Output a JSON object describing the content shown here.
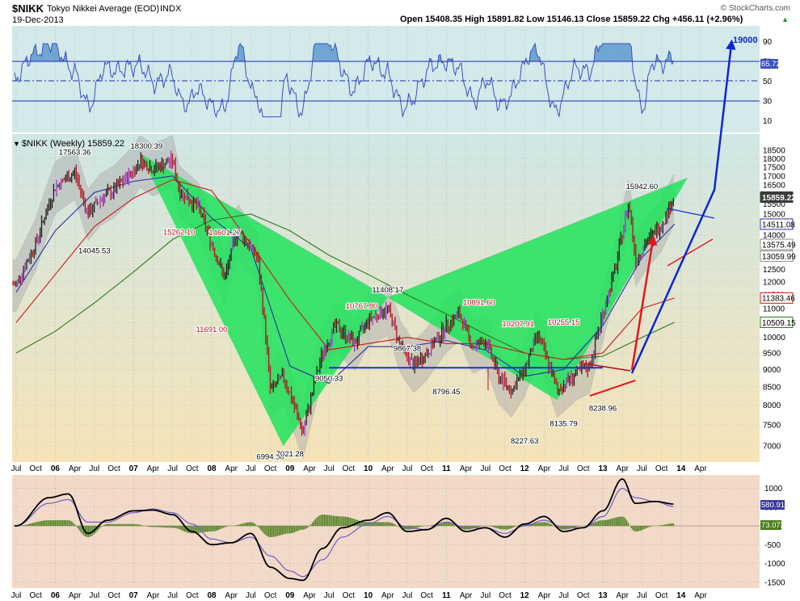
{
  "header": {
    "symbol": "$NIKK",
    "name": "Tokyo Nikkei Average (EOD)",
    "exchange": "INDX",
    "date": "19-Dec-2013",
    "watermark": "© StockCharts.com",
    "ohlc_text": "Open 15408.35  High 15891.82  Low 15146.13  Close 15859.22  Chg +456.11 (+2.96%)",
    "chg_arrow": "▲"
  },
  "colors": {
    "upper_bg": "#d3e9ea",
    "main_bg_top": "#cfe7e5",
    "main_bg_bottom": "#f6e3b7",
    "macd_bg": "#f3d9c8",
    "pattern_fill": "#1fe35a",
    "rsi_line": "#3f4fc0",
    "rsi_fill": "#4d8fc9",
    "bb_fill": "#a9a9a9",
    "ma_short": "#2a2fa5",
    "ma_mid": "#d21616",
    "ma_long": "#2b7a1e",
    "price_up": "#1e1e1e",
    "price_down": "#b3121d",
    "price_purple": "#9b34d6",
    "support_line": "#1732d6",
    "arrow_blue": "#0b26d8",
    "arrow_red": "#e8151b",
    "macd_line": "#000000",
    "macd_signal": "#6b5fc7",
    "macd_hist": "#4a7f1c"
  },
  "rsi": {
    "ticks": [
      "90",
      "70",
      "50",
      "30",
      "10"
    ],
    "current_label": "65.72",
    "target_label": "19000"
  },
  "chart_data": {
    "type": "line",
    "title": "$NIKK (Weekly) 15859.22",
    "title_prefix": "▼",
    "x_axis_labels": [
      "Jul",
      "Oct",
      "06",
      "Apr",
      "Jul",
      "Oct",
      "07",
      "Apr",
      "Jul",
      "Oct",
      "08",
      "Apr",
      "Jul",
      "Oct",
      "09",
      "Apr",
      "Jul",
      "Oct",
      "10",
      "Apr",
      "Jul",
      "Oct",
      "11",
      "Apr",
      "Jul",
      "Oct",
      "12",
      "Apr",
      "Jul",
      "Oct",
      "13",
      "Apr",
      "Jul",
      "Oct",
      "14",
      "Apr"
    ],
    "y_ticks": [
      "18500",
      "18000",
      "17500",
      "17000",
      "16500",
      "16000",
      "15500",
      "15000",
      "14500",
      "14000",
      "13500",
      "13000",
      "12500",
      "12000",
      "11500",
      "11000",
      "10500",
      "10000",
      "9500",
      "9000",
      "8500",
      "8000",
      "7500",
      "7000"
    ],
    "y_scale": "log",
    "ylim": [
      6500,
      19000
    ],
    "series": [
      {
        "kind": "weekly price",
        "dates": [
          "2005-07",
          "2005-10",
          "2006-01",
          "2006-04",
          "2006-06",
          "2006-08",
          "2006-10",
          "2007-01",
          "2007-02",
          "2007-04",
          "2007-07",
          "2007-08",
          "2007-11",
          "2008-01",
          "2008-03",
          "2008-05",
          "2008-06",
          "2008-08",
          "2008-10",
          "2008-12",
          "2009-03",
          "2009-06",
          "2009-08",
          "2009-11",
          "2010-01",
          "2010-04",
          "2010-06",
          "2010-08",
          "2010-10",
          "2011-01",
          "2011-03",
          "2011-05",
          "2011-07",
          "2011-09",
          "2011-11",
          "2012-01",
          "2012-03",
          "2012-06",
          "2012-09",
          "2012-11",
          "2013-01",
          "2013-03",
          "2013-05",
          "2013-06",
          "2013-08",
          "2013-10",
          "2013-12"
        ],
        "values": [
          11900,
          13600,
          16400,
          17200,
          15000,
          15800,
          16200,
          17300,
          17900,
          17400,
          17900,
          16200,
          15300,
          13600,
          12100,
          14300,
          13800,
          13000,
          8400,
          8800,
          7300,
          9500,
          10400,
          9800,
          10600,
          11000,
          9700,
          9100,
          9500,
          10400,
          10800,
          9700,
          9900,
          8800,
          8400,
          9000,
          10100,
          8400,
          8900,
          9100,
          10800,
          12600,
          15600,
          12900,
          13800,
          14500,
          15859
        ]
      },
      {
        "kind": "moving average short (blue)",
        "dates": [
          "2005-07",
          "2006-01",
          "2006-07",
          "2007-01",
          "2007-07",
          "2008-01",
          "2008-07",
          "2009-01",
          "2009-07",
          "2010-01",
          "2010-07",
          "2011-01",
          "2011-07",
          "2012-01",
          "2012-07",
          "2013-01",
          "2013-07",
          "2013-12"
        ],
        "values": [
          11600,
          14200,
          16100,
          16700,
          17000,
          14800,
          13400,
          9100,
          8600,
          9700,
          9700,
          9900,
          9600,
          8800,
          9000,
          10400,
          13000,
          14511
        ]
      },
      {
        "kind": "moving average mid (red)",
        "dates": [
          "2005-07",
          "2006-01",
          "2006-07",
          "2007-01",
          "2007-07",
          "2008-01",
          "2008-07",
          "2009-01",
          "2009-07",
          "2010-01",
          "2010-07",
          "2011-01",
          "2011-07",
          "2012-01",
          "2012-07",
          "2013-01",
          "2013-07",
          "2013-12"
        ],
        "values": [
          10500,
          12300,
          14400,
          15800,
          16800,
          16200,
          13600,
          11300,
          9600,
          9800,
          10000,
          9800,
          9800,
          9500,
          9300,
          9500,
          11000,
          11383
        ]
      },
      {
        "kind": "moving average long (green)",
        "dates": [
          "2005-07",
          "2006-01",
          "2006-07",
          "2007-01",
          "2007-07",
          "2008-01",
          "2008-07",
          "2009-01",
          "2009-07",
          "2010-01",
          "2010-07",
          "2011-01",
          "2011-07",
          "2012-01",
          "2012-07",
          "2013-01",
          "2013-07",
          "2013-12"
        ],
        "values": [
          9500,
          10200,
          11200,
          12400,
          13800,
          14700,
          15000,
          14200,
          13100,
          12300,
          11500,
          10800,
          10100,
          9500,
          9300,
          9400,
          10000,
          10509
        ]
      }
    ],
    "annotations": [
      "17563.36",
      "18300.39",
      "14045.53",
      "15262.10",
      "14601.27",
      "11691.00",
      "6994.90",
      "7021.28",
      "9050.33",
      "10767.80",
      "9867.38",
      "11408.17",
      "8796.45",
      "10891.60",
      "8227.63",
      "10207.91",
      "8135.79",
      "10255.15",
      "8238.96",
      "15942.60"
    ],
    "price_boxes": [
      "15859.22",
      "14511.08",
      "13575.49",
      "13059.99",
      "11383.46",
      "10509.15"
    ],
    "pattern": {
      "kind": "harmonic pattern",
      "points": [
        {
          "date": "2007-02",
          "value": 18300
        },
        {
          "date": "2008-12",
          "value": 6995
        },
        {
          "date": "2010-04",
          "value": 11408
        },
        {
          "date": "2012-06",
          "value": 8136
        },
        {
          "date": "2014-02",
          "value": 16900
        }
      ]
    },
    "support_level": {
      "value": 9050,
      "from": "2009-07",
      "to": "2013-01"
    },
    "grid": true
  },
  "macd": {
    "ticks": [
      "1000",
      "500",
      "-500",
      "-1000",
      "-1500"
    ],
    "current_macd_label": "580.910",
    "current_hist_label": "73.072",
    "dates": [
      "2005-07",
      "2005-12",
      "2006-03",
      "2006-06",
      "2006-09",
      "2007-01",
      "2007-04",
      "2007-07",
      "2007-10",
      "2008-01",
      "2008-04",
      "2008-07",
      "2008-10",
      "2009-01",
      "2009-03",
      "2009-06",
      "2009-09",
      "2010-01",
      "2010-04",
      "2010-07",
      "2010-10",
      "2011-01",
      "2011-04",
      "2011-07",
      "2011-10",
      "2012-01",
      "2012-04",
      "2012-07",
      "2012-10",
      "2013-01",
      "2013-04",
      "2013-06",
      "2013-09",
      "2013-12"
    ],
    "macd_values": [
      0,
      750,
      850,
      -200,
      150,
      400,
      420,
      300,
      -150,
      -500,
      -450,
      -200,
      -1100,
      -1400,
      -1450,
      -600,
      -50,
      150,
      350,
      -150,
      -100,
      200,
      -150,
      -50,
      -300,
      50,
      250,
      -150,
      -50,
      400,
      1250,
      600,
      650,
      580
    ],
    "signal_values": [
      0,
      600,
      700,
      100,
      100,
      350,
      450,
      350,
      50,
      -350,
      -450,
      -300,
      -800,
      -1200,
      -1350,
      -900,
      -300,
      50,
      250,
      -50,
      -100,
      100,
      -50,
      -50,
      -200,
      0,
      150,
      -50,
      -50,
      250,
      1000,
      750,
      650,
      510
    ]
  }
}
